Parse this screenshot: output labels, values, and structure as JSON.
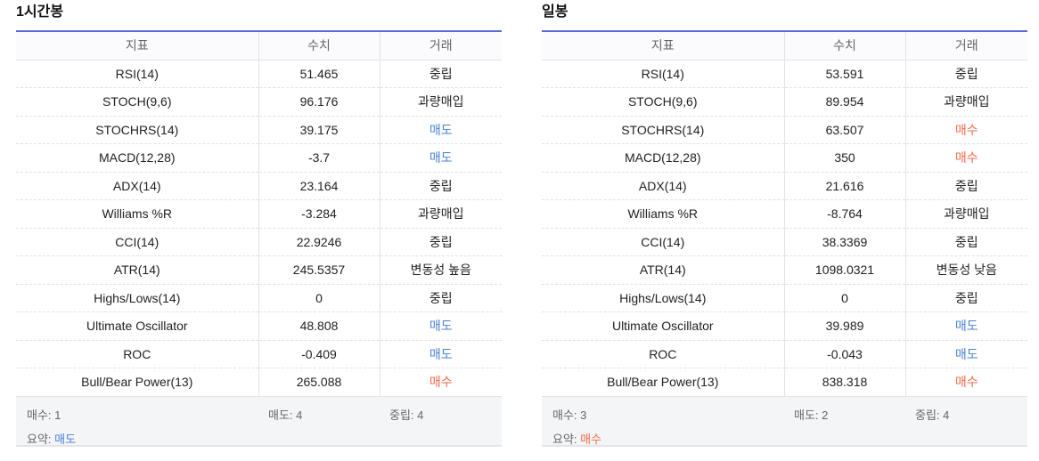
{
  "headers": [
    "지표",
    "수치",
    "거래"
  ],
  "panels": [
    {
      "title": "1시간봉",
      "rows": [
        {
          "name": "RSI(14)",
          "value": "51.465",
          "action": "중립",
          "tone": "neutral"
        },
        {
          "name": "STOCH(9,6)",
          "value": "96.176",
          "action": "과량매입",
          "tone": "neutral"
        },
        {
          "name": "STOCHRS(14)",
          "value": "39.175",
          "action": "매도",
          "tone": "sell"
        },
        {
          "name": "MACD(12,28)",
          "value": "-3.7",
          "action": "매도",
          "tone": "sell"
        },
        {
          "name": "ADX(14)",
          "value": "23.164",
          "action": "중립",
          "tone": "neutral"
        },
        {
          "name": "Williams %R",
          "value": "-3.284",
          "action": "과량매입",
          "tone": "neutral"
        },
        {
          "name": "CCI(14)",
          "value": "22.9246",
          "action": "중립",
          "tone": "neutral"
        },
        {
          "name": "ATR(14)",
          "value": "245.5357",
          "action": "변동성 높음",
          "tone": "neutral"
        },
        {
          "name": "Highs/Lows(14)",
          "value": "0",
          "action": "중립",
          "tone": "neutral"
        },
        {
          "name": "Ultimate Oscillator",
          "value": "48.808",
          "action": "매도",
          "tone": "sell"
        },
        {
          "name": "ROC",
          "value": "-0.409",
          "action": "매도",
          "tone": "sell"
        },
        {
          "name": "Bull/Bear Power(13)",
          "value": "265.088",
          "action": "매수",
          "tone": "buy"
        }
      ],
      "summary": {
        "buy": "매수: 1",
        "sell": "매도: 4",
        "neutral": "중립: 4",
        "verdict_label": "요약: ",
        "verdict": "매도",
        "verdict_tone": "sell"
      }
    },
    {
      "title": "일봉",
      "rows": [
        {
          "name": "RSI(14)",
          "value": "53.591",
          "action": "중립",
          "tone": "neutral"
        },
        {
          "name": "STOCH(9,6)",
          "value": "89.954",
          "action": "과량매입",
          "tone": "neutral"
        },
        {
          "name": "STOCHRS(14)",
          "value": "63.507",
          "action": "매수",
          "tone": "buy"
        },
        {
          "name": "MACD(12,28)",
          "value": "350",
          "action": "매수",
          "tone": "buy"
        },
        {
          "name": "ADX(14)",
          "value": "21.616",
          "action": "중립",
          "tone": "neutral"
        },
        {
          "name": "Williams %R",
          "value": "-8.764",
          "action": "과량매입",
          "tone": "neutral"
        },
        {
          "name": "CCI(14)",
          "value": "38.3369",
          "action": "중립",
          "tone": "neutral"
        },
        {
          "name": "ATR(14)",
          "value": "1098.0321",
          "action": "변동성 낮음",
          "tone": "neutral"
        },
        {
          "name": "Highs/Lows(14)",
          "value": "0",
          "action": "중립",
          "tone": "neutral"
        },
        {
          "name": "Ultimate Oscillator",
          "value": "39.989",
          "action": "매도",
          "tone": "sell"
        },
        {
          "name": "ROC",
          "value": "-0.043",
          "action": "매도",
          "tone": "sell"
        },
        {
          "name": "Bull/Bear Power(13)",
          "value": "838.318",
          "action": "매수",
          "tone": "buy"
        }
      ],
      "summary": {
        "buy": "매수: 3",
        "sell": "매도: 2",
        "neutral": "중립: 4",
        "verdict_label": "요약: ",
        "verdict": "매수",
        "verdict_tone": "buy"
      }
    }
  ],
  "colors": {
    "accent_line": "#5b6bd5",
    "sell": "#4a7fd6",
    "buy": "#ef6a4a",
    "summary_bg": "#f4f5f7"
  }
}
